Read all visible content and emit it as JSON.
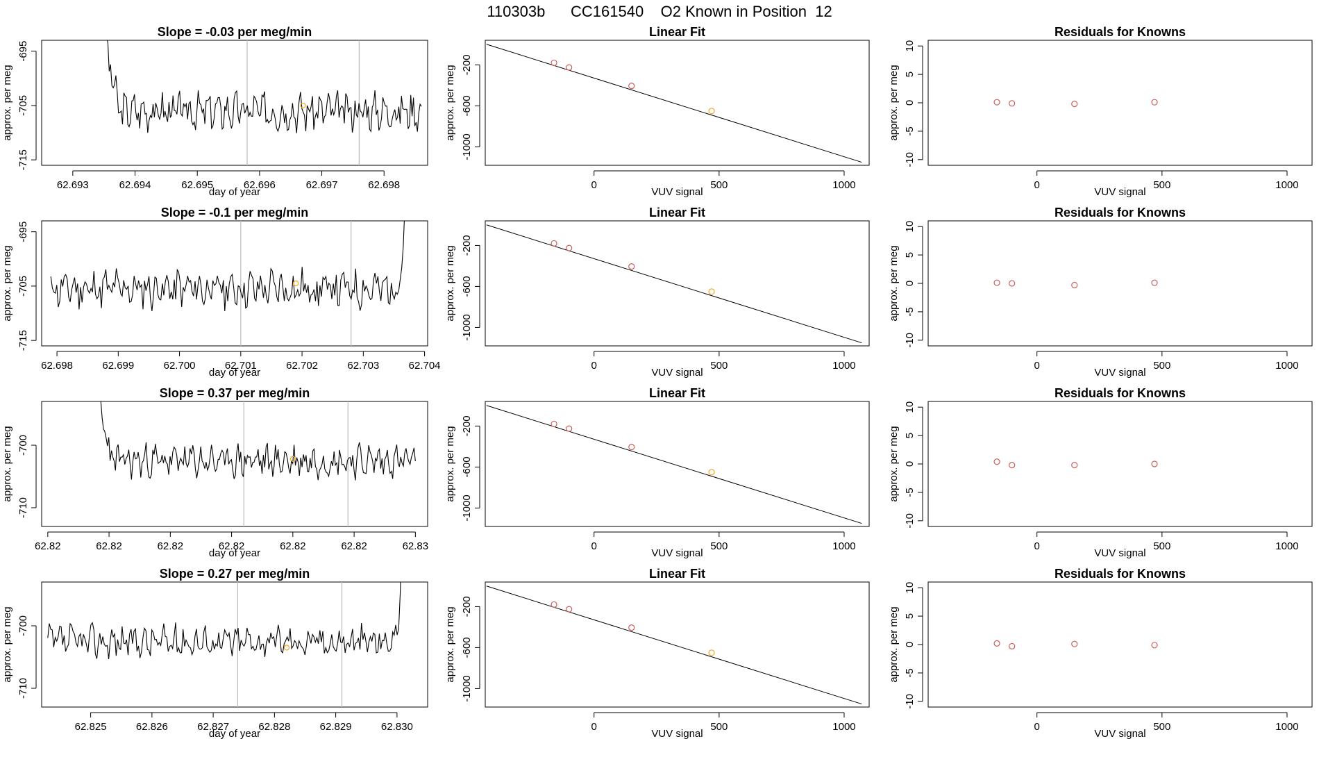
{
  "page_title": "110303b      CC161540    O2 Known in Position  12",
  "colors": {
    "ink": "#000000",
    "vline": "#bbbbbb",
    "known": "#cd5c5c",
    "unknown": "#f5a623"
  },
  "labels": {
    "ts_x": "day of year",
    "y": "approx. per meg",
    "fit_title": "Linear Fit",
    "fit_x": "VUV signal",
    "res_title": "Residuals for Knowns",
    "res_x": "VUV signal"
  },
  "chart_data": [
    {
      "type": "line",
      "title": "Slope =  -0.03  per meg/min",
      "xlim": [
        62.6925,
        62.6987
      ],
      "xticks": [
        62.693,
        62.694,
        62.695,
        62.696,
        62.697,
        62.698
      ],
      "ylim": [
        -716,
        -693
      ],
      "yticks": [
        -695,
        -705,
        -715
      ],
      "vlines": [
        62.6958,
        62.6976
      ],
      "x_start": 62.6935,
      "x_end": 62.6986,
      "start_spike": 693,
      "baseline": -706,
      "amplitude": 2.6,
      "seed": 3,
      "end_rise": 0,
      "marker": [
        62.6967,
        -705.0
      ]
    },
    {
      "type": "line",
      "title": "Slope =  -0.1  per meg/min",
      "xlim": [
        62.69775,
        62.70405
      ],
      "xticks": [
        62.698,
        62.699,
        62.7,
        62.701,
        62.702,
        62.703,
        62.704
      ],
      "ylim": [
        -716,
        -693
      ],
      "yticks": [
        -695,
        -705,
        -715
      ],
      "vlines": [
        62.701,
        62.7028
      ],
      "x_start": 62.6979,
      "x_end": 62.7037,
      "start_spike": 0,
      "baseline": -705.5,
      "amplitude": 2.8,
      "seed": 11,
      "end_rise": 693,
      "marker": [
        62.7019,
        -704.5
      ]
    },
    {
      "type": "line",
      "title": "Slope =  0.37  per meg/min",
      "xlim": [
        62.8189,
        62.8252
      ],
      "xticks": [
        62.819,
        62.82,
        62.821,
        62.822,
        62.823,
        62.824,
        62.825
      ],
      "ylim": [
        -713,
        -693
      ],
      "yticks": [
        -700,
        -710
      ],
      "vlines": [
        62.8222,
        62.8239
      ],
      "x_start": 62.8198,
      "x_end": 62.825,
      "start_spike": 693,
      "baseline": -702.5,
      "amplitude": 2.0,
      "seed": 23,
      "end_rise": 0,
      "marker": [
        62.823,
        -702.2
      ]
    },
    {
      "type": "line",
      "title": "Slope =  0.27  per meg/min",
      "xlim": [
        62.8242,
        62.8305
      ],
      "xticks": [
        62.825,
        62.826,
        62.827,
        62.828,
        62.829,
        62.83
      ],
      "ylim": [
        -713,
        -693
      ],
      "yticks": [
        -700,
        -710
      ],
      "vlines": [
        62.8274,
        62.8291
      ],
      "x_start": 62.8243,
      "x_end": 62.8301,
      "start_spike": 0,
      "baseline": -702.5,
      "amplitude": 2.0,
      "seed": 37,
      "end_rise": 693,
      "marker": [
        62.8282,
        -703.5
      ]
    },
    {
      "type": "scatter",
      "title": "Linear Fit",
      "xlabel": "VUV signal",
      "ylabel": "approx. per meg",
      "xlim": [
        -435,
        1100
      ],
      "ylim": [
        -1180,
        40
      ],
      "xticks": [
        0,
        500,
        1000
      ],
      "yticks": [
        -200,
        -600,
        -1000
      ],
      "line": {
        "x0": -430,
        "y0": 1.1,
        "x1": 1070,
        "y1": -1150
      },
      "known": [
        [
          -160,
          -180
        ],
        [
          -100,
          -225
        ],
        [
          150,
          -405
        ]
      ],
      "unknown": [
        [
          470,
          -650
        ]
      ]
    },
    {
      "type": "scatter",
      "title": "Residuals for Knowns",
      "xlabel": "VUV signal",
      "ylabel": "approx. per meg",
      "xlim": [
        -435,
        1100
      ],
      "ylim": [
        -11,
        11
      ],
      "xticks": [
        0,
        500,
        1000
      ],
      "yticks": [
        10,
        5,
        0,
        -5,
        -10
      ],
      "points_by_row": [
        [
          [
            -160,
            0.1
          ],
          [
            -100,
            -0.1
          ],
          [
            150,
            -0.2
          ],
          [
            470,
            0.1
          ]
        ],
        [
          [
            -160,
            0.1
          ],
          [
            -100,
            0.0
          ],
          [
            150,
            -0.3
          ],
          [
            470,
            0.1
          ]
        ],
        [
          [
            -160,
            0.4
          ],
          [
            -100,
            -0.2
          ],
          [
            150,
            -0.2
          ],
          [
            470,
            0.0
          ]
        ],
        [
          [
            -160,
            0.2
          ],
          [
            -100,
            -0.3
          ],
          [
            150,
            0.1
          ],
          [
            470,
            -0.1
          ]
        ]
      ]
    }
  ]
}
